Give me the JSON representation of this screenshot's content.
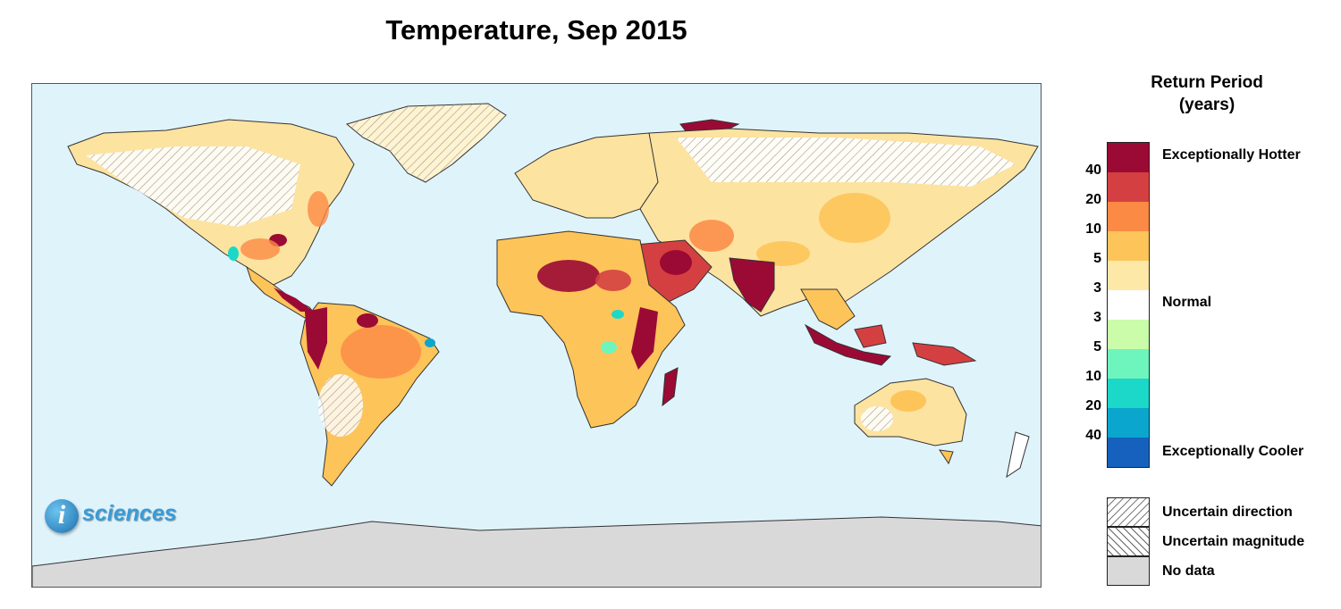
{
  "title": "Temperature, Sep 2015",
  "legend": {
    "title_line1": "Return Period",
    "title_line2": "(years)",
    "scale_colors": [
      "#9b0a35",
      "#d44041",
      "#fb8a45",
      "#fdc459",
      "#fde8a7",
      "#ffffff",
      "#cbfca9",
      "#6ef5bd",
      "#1cd8c8",
      "#0aa6cd",
      "#1661be"
    ],
    "tick_labels": [
      "40",
      "20",
      "10",
      "5",
      "3",
      "3",
      "5",
      "10",
      "20",
      "40"
    ],
    "categories": {
      "hot": "Exceptionally Hotter",
      "normal": "Normal",
      "cool": "Exceptionally Cooler"
    },
    "pattern_items": [
      {
        "label": "Uncertain direction",
        "pattern": "hatch-single"
      },
      {
        "label": "Uncertain magnitude",
        "pattern": "hatch-cross"
      },
      {
        "label": "No data",
        "pattern": "gray"
      }
    ]
  },
  "logo": {
    "letter": "i",
    "text": "sciences"
  },
  "map": {
    "ocean_color": "#dff3fb",
    "no_data_color": "#d9d9d9",
    "region": "world"
  }
}
